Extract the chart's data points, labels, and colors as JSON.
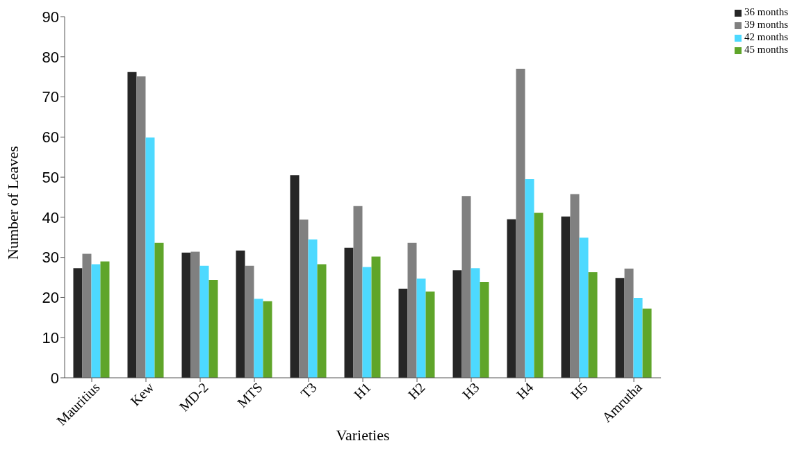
{
  "chart_data": {
    "type": "bar",
    "xlabel": "Varieties",
    "ylabel": "Number of Leaves",
    "categories": [
      "Mauritius",
      "Kew",
      "MD-2",
      "MTS",
      "T3",
      "H1",
      "H2",
      "H3",
      "H4",
      "H5",
      "Amrutha"
    ],
    "series": [
      {
        "name": "36 months",
        "color": "#262626",
        "values": [
          27.3,
          76.2,
          31.2,
          31.7,
          50.5,
          32.4,
          22.2,
          26.8,
          39.5,
          40.2,
          24.9
        ]
      },
      {
        "name": "39 months",
        "color": "#808080",
        "values": [
          30.9,
          75.1,
          31.4,
          27.9,
          39.4,
          42.8,
          33.6,
          45.3,
          77.0,
          45.8,
          27.2
        ]
      },
      {
        "name": "42 months",
        "color": "#4dd9ff",
        "values": [
          28.3,
          59.9,
          27.9,
          19.7,
          34.5,
          27.6,
          24.7,
          27.3,
          49.5,
          34.9,
          19.9
        ]
      },
      {
        "name": "45 months",
        "color": "#5fa52a",
        "values": [
          29.0,
          33.6,
          24.4,
          19.1,
          28.3,
          30.2,
          21.5,
          23.9,
          41.1,
          26.3,
          17.2
        ]
      }
    ],
    "ylim": [
      0,
      90
    ],
    "yticks": [
      0,
      10,
      20,
      30,
      40,
      50,
      60,
      70,
      80,
      90
    ],
    "grid": false,
    "legend": "top right"
  }
}
